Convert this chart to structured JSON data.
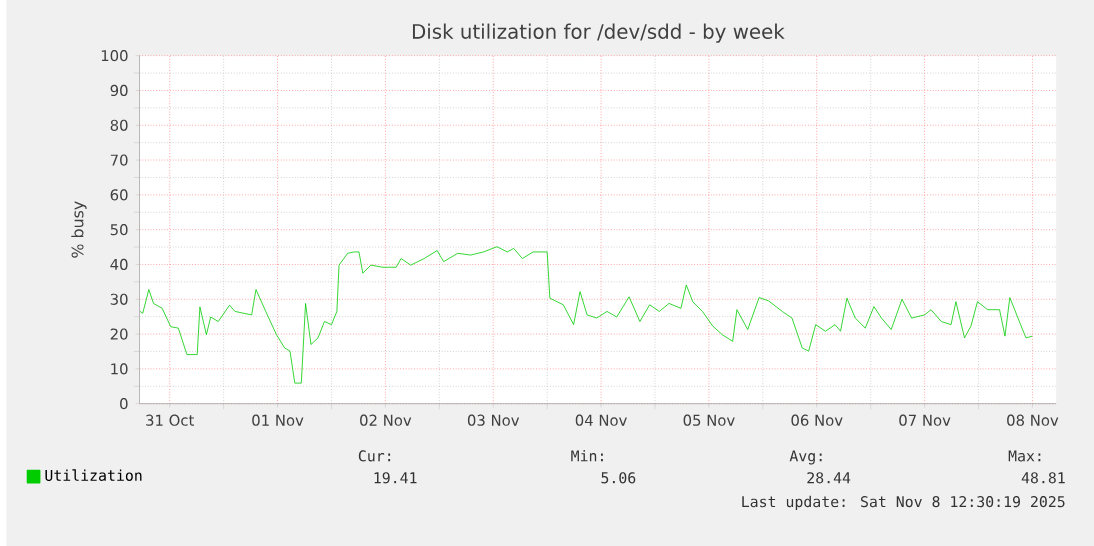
{
  "chart_data": {
    "type": "line",
    "title": "Disk utilization for /dev/sdd - by week",
    "ylabel": "% busy",
    "x": [
      "2025-10-31T05:24",
      "2025-10-31T06:00",
      "2025-10-31T07:21",
      "2025-10-31T08:24",
      "2025-10-31T10:19",
      "2025-10-31T12:14",
      "2025-10-31T13:55",
      "2025-10-31T15:50",
      "2025-10-31T18:07",
      "2025-10-31T18:43",
      "2025-10-31T20:10",
      "2025-10-31T21:07",
      "2025-10-31T22:48",
      "2025-11-01T01:19",
      "2025-11-01T02:31",
      "2025-11-01T06:14",
      "2025-11-01T07:12",
      "2025-11-01T09:22",
      "2025-11-01T11:46",
      "2025-11-01T13:35",
      "2025-11-01T14:46",
      "2025-11-01T15:50",
      "2025-11-01T17:17",
      "2025-11-01T18:14",
      "2025-11-01T19:26",
      "2025-11-01T21:00",
      "2025-11-01T22:26",
      "2025-11-02T00:00",
      "2025-11-02T01:12",
      "2025-11-02T01:41",
      "2025-11-02T03:36",
      "2025-11-02T05:02",
      "2025-11-02T06:07",
      "2025-11-02T06:58",
      "2025-11-02T08:46",
      "2025-11-02T11:25",
      "2025-11-02T14:24",
      "2025-11-02T15:29",
      "2025-11-02T17:38",
      "2025-11-02T20:38",
      "2025-11-02T23:31",
      "2025-11-03T00:58",
      "2025-11-03T04:05",
      "2025-11-03T06:58",
      "2025-11-03T09:50",
      "2025-11-03T12:50",
      "2025-11-03T15:07",
      "2025-11-03T16:34",
      "2025-11-03T18:29",
      "2025-11-03T20:53",
      "2025-11-04T00:00",
      "2025-11-04T00:36",
      "2025-11-04T03:36",
      "2025-11-04T05:53",
      "2025-11-04T07:19",
      "2025-11-04T08:53",
      "2025-11-04T11:02",
      "2025-11-04T13:19",
      "2025-11-04T15:29",
      "2025-11-04T18:14",
      "2025-11-04T20:38",
      "2025-11-04T22:48",
      "2025-11-05T00:58",
      "2025-11-05T03:07",
      "2025-11-05T05:46",
      "2025-11-05T06:58",
      "2025-11-05T08:24",
      "2025-11-05T10:34",
      "2025-11-05T12:50",
      "2025-11-05T15:00",
      "2025-11-05T17:17",
      "2025-11-05T18:14",
      "2025-11-05T20:38",
      "2025-11-05T23:10",
      "2025-11-06T01:19",
      "2025-11-06T04:19",
      "2025-11-06T06:29",
      "2025-11-06T08:46",
      "2025-11-06T10:12",
      "2025-11-06T11:46",
      "2025-11-06T13:55",
      "2025-11-06T16:05",
      "2025-11-06T17:17",
      "2025-11-06T18:43",
      "2025-11-06T20:33",
      "2025-11-06T22:48",
      "2025-11-07T00:43",
      "2025-11-07T02:24",
      "2025-11-07T04:34",
      "2025-11-07T06:58",
      "2025-11-07T09:07",
      "2025-11-07T12:00",
      "2025-11-07T13:26",
      "2025-11-07T15:43",
      "2025-11-07T17:53",
      "2025-11-07T18:58",
      "2025-11-07T20:53",
      "2025-11-07T22:19",
      "2025-11-07T23:46",
      "2025-11-08T02:02",
      "2025-11-08T04:41",
      "2025-11-08T05:53",
      "2025-11-08T06:58",
      "2025-11-08T09:22",
      "2025-11-08T10:34",
      "2025-11-08T12:00"
    ],
    "series": [
      {
        "name": "Utilization",
        "color": "#00cc00",
        "values": [
          26.5,
          26,
          32.8,
          28.8,
          27.4,
          22.1,
          21.7,
          14.1,
          14.1,
          27.8,
          19.8,
          24.9,
          23.6,
          28.3,
          26.5,
          25.5,
          32.8,
          26.5,
          19.8,
          16,
          15.1,
          5.9,
          5.9,
          28.8,
          17,
          18.9,
          23.6,
          22.7,
          26.5,
          39.8,
          43.2,
          43.6,
          43.6,
          37.5,
          39.8,
          39.2,
          39.2,
          41.7,
          39.8,
          41.7,
          44,
          40.8,
          43.2,
          42.7,
          43.6,
          45.1,
          43.6,
          44.6,
          41.7,
          43.6,
          43.6,
          30.3,
          28.4,
          22.7,
          32.2,
          25.5,
          24.6,
          26.5,
          24.9,
          30.7,
          23.6,
          28.4,
          26.5,
          28.8,
          27.4,
          34.1,
          29.3,
          26.5,
          22.3,
          19.8,
          17.9,
          27.0,
          21.3,
          30.5,
          29.5,
          26.5,
          24.6,
          16,
          15.1,
          22.7,
          20.8,
          22.7,
          20.8,
          30.3,
          24.6,
          21.7,
          27.9,
          24.6,
          21.3,
          30.0,
          24.6,
          25.5,
          27.0,
          23.6,
          22.7,
          29.3,
          18.9,
          22.3,
          29.3,
          27.0,
          27.0,
          19.4,
          30.5,
          22.7,
          18.9,
          19.4
        ]
      }
    ],
    "xlim": [
      "2025-10-31T05:17",
      "2025-11-08T17:17"
    ],
    "xticks": [
      {
        "value": "2025-10-31T12:00",
        "label": "31 Oct"
      },
      {
        "value": "2025-11-01T12:00",
        "label": "01 Nov"
      },
      {
        "value": "2025-11-02T12:00",
        "label": "02 Nov"
      },
      {
        "value": "2025-11-03T12:00",
        "label": "03 Nov"
      },
      {
        "value": "2025-11-04T12:00",
        "label": "04 Nov"
      },
      {
        "value": "2025-11-05T12:00",
        "label": "05 Nov"
      },
      {
        "value": "2025-11-06T12:00",
        "label": "06 Nov"
      },
      {
        "value": "2025-11-07T12:00",
        "label": "07 Nov"
      },
      {
        "value": "2025-11-08T12:00",
        "label": "08 Nov"
      }
    ],
    "ylim": [
      0,
      100
    ],
    "yticks": [
      0,
      10,
      20,
      30,
      40,
      50,
      60,
      70,
      80,
      90,
      100
    ],
    "grid": true,
    "legend": "bottom",
    "annotations": [
      "Cur:",
      "Min:",
      "Avg:",
      "Max:",
      "19.41",
      "5.06",
      "28.44",
      "48.81",
      "Last update: Sat Nov  8 12:30:19 2025"
    ]
  }
}
